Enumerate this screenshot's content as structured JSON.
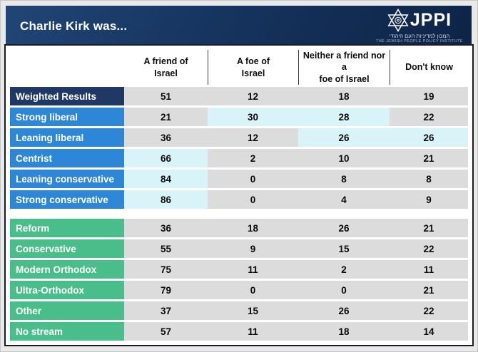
{
  "header": {
    "title": "Charlie Kirk was...",
    "logo": {
      "acronym": "JPPI",
      "hebrew_name": "המכון למדיניות העם היהודי",
      "english_name": "THE JEWISH PEOPLE POLICY INSTITUTE",
      "star_icon": "star-of-david-icon"
    }
  },
  "table": {
    "columns": [
      "A friend of\nIsrael",
      "A foe of\nIsrael",
      "Neither a friend nor a\nfoe of Israel",
      "Don't know"
    ],
    "groups": [
      {
        "name": "political-orientation",
        "rows": [
          {
            "label": "Weighted Results",
            "style": "navy",
            "values": [
              "51",
              "12",
              "18",
              "19"
            ],
            "highlights": [
              false,
              false,
              false,
              false
            ]
          },
          {
            "label": "Strong liberal",
            "style": "blue",
            "values": [
              "21",
              "30",
              "28",
              "22"
            ],
            "highlights": [
              false,
              true,
              true,
              false
            ]
          },
          {
            "label": "Leaning liberal",
            "style": "blue",
            "values": [
              "36",
              "12",
              "26",
              "26"
            ],
            "highlights": [
              false,
              false,
              true,
              true
            ]
          },
          {
            "label": "Centrist",
            "style": "blue",
            "values": [
              "66",
              "2",
              "10",
              "21"
            ],
            "highlights": [
              true,
              false,
              false,
              false
            ]
          },
          {
            "label": "Leaning conservative",
            "style": "blue",
            "values": [
              "84",
              "0",
              "8",
              "8"
            ],
            "highlights": [
              true,
              false,
              false,
              false
            ]
          },
          {
            "label": "Strong conservative",
            "style": "blue",
            "values": [
              "86",
              "0",
              "4",
              "9"
            ],
            "highlights": [
              true,
              false,
              false,
              false
            ]
          }
        ]
      },
      {
        "name": "religious-stream",
        "rows": [
          {
            "label": "Reform",
            "style": "green",
            "values": [
              "36",
              "18",
              "26",
              "21"
            ],
            "highlights": [
              false,
              false,
              false,
              false
            ]
          },
          {
            "label": "Conservative",
            "style": "green",
            "values": [
              "55",
              "9",
              "15",
              "22"
            ],
            "highlights": [
              false,
              false,
              false,
              false
            ]
          },
          {
            "label": "Modern Orthodox",
            "style": "green",
            "values": [
              "75",
              "11",
              "2",
              "11"
            ],
            "highlights": [
              false,
              false,
              false,
              false
            ]
          },
          {
            "label": "Ultra-Orthodox",
            "style": "green",
            "values": [
              "79",
              "0",
              "0",
              "21"
            ],
            "highlights": [
              false,
              false,
              false,
              false
            ]
          },
          {
            "label": "Other",
            "style": "green",
            "values": [
              "37",
              "15",
              "26",
              "22"
            ],
            "highlights": [
              false,
              false,
              false,
              false
            ]
          },
          {
            "label": "No stream",
            "style": "green",
            "values": [
              "57",
              "11",
              "18",
              "14"
            ],
            "highlights": [
              false,
              false,
              false,
              false
            ]
          }
        ]
      }
    ]
  },
  "colors": {
    "header_navy": "#16345f",
    "label_navy": "#203864",
    "label_blue": "#2e86d6",
    "label_green": "#4abe8a",
    "cell_gray": "#dcdcdd",
    "cell_highlight_cyan": "#d9f4f8",
    "page_background": "#e9e9ea"
  },
  "chart_data": {
    "type": "table",
    "title": "Charlie Kirk was...",
    "columns": [
      "A friend of Israel",
      "A foe of Israel",
      "Neither a friend nor a foe of Israel",
      "Don't know"
    ],
    "rows": [
      {
        "label": "Weighted Results",
        "group": "political-orientation",
        "values": [
          51,
          12,
          18,
          19
        ]
      },
      {
        "label": "Strong liberal",
        "group": "political-orientation",
        "values": [
          21,
          30,
          28,
          22
        ]
      },
      {
        "label": "Leaning liberal",
        "group": "political-orientation",
        "values": [
          36,
          12,
          26,
          26
        ]
      },
      {
        "label": "Centrist",
        "group": "political-orientation",
        "values": [
          66,
          2,
          10,
          21
        ]
      },
      {
        "label": "Leaning conservative",
        "group": "political-orientation",
        "values": [
          84,
          0,
          8,
          8
        ]
      },
      {
        "label": "Strong conservative",
        "group": "political-orientation",
        "values": [
          86,
          0,
          4,
          9
        ]
      },
      {
        "label": "Reform",
        "group": "religious-stream",
        "values": [
          36,
          18,
          26,
          21
        ]
      },
      {
        "label": "Conservative",
        "group": "religious-stream",
        "values": [
          55,
          9,
          15,
          22
        ]
      },
      {
        "label": "Modern Orthodox",
        "group": "religious-stream",
        "values": [
          75,
          11,
          2,
          11
        ]
      },
      {
        "label": "Ultra-Orthodox",
        "group": "religious-stream",
        "values": [
          79,
          0,
          0,
          21
        ]
      },
      {
        "label": "Other",
        "group": "religious-stream",
        "values": [
          37,
          15,
          26,
          22
        ]
      },
      {
        "label": "No stream",
        "group": "religious-stream",
        "values": [
          57,
          11,
          18,
          14
        ]
      }
    ],
    "notes": "Highlighted (light cyan) cells mark emphasized values per row; values are percentages."
  }
}
